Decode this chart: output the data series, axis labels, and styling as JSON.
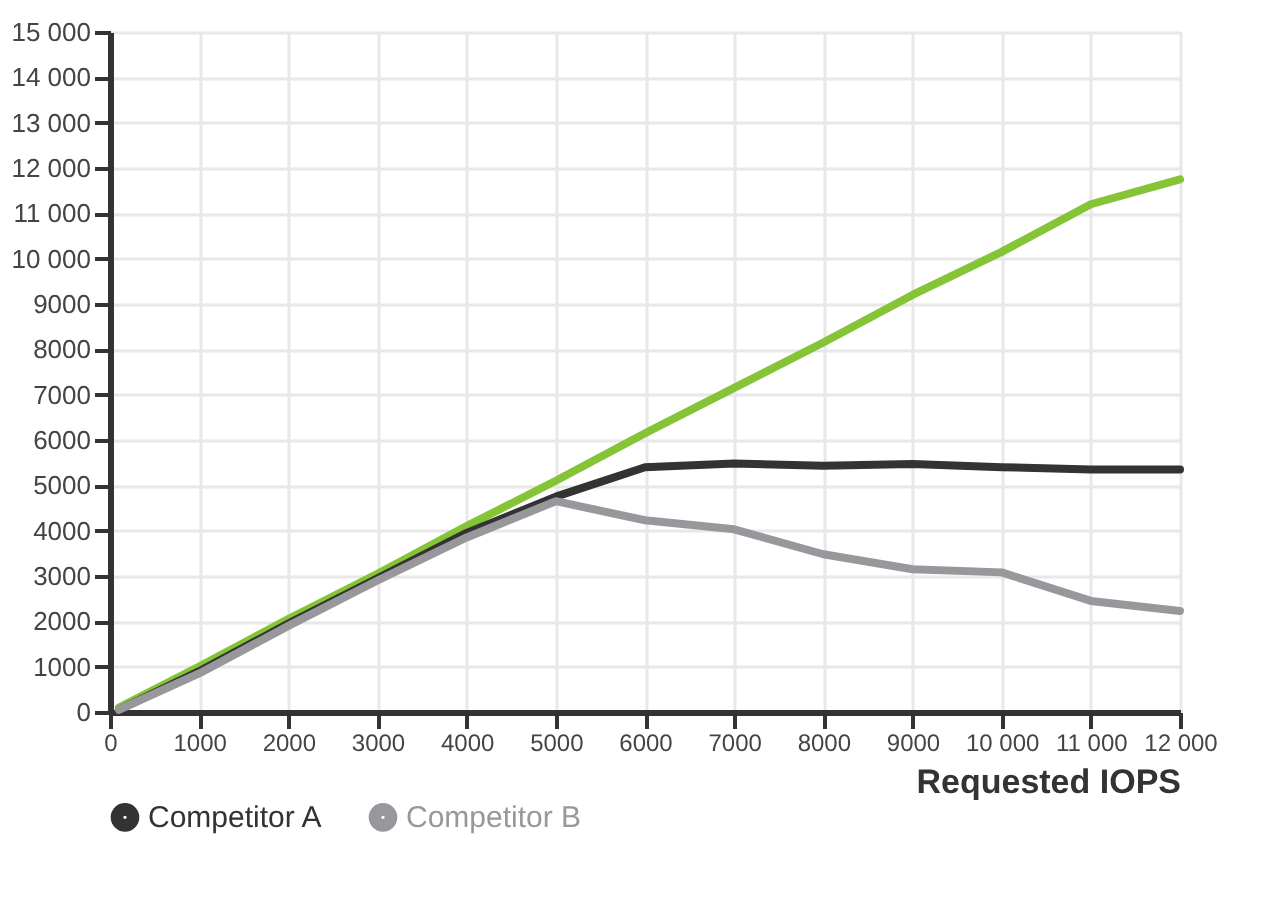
{
  "chart_data": {
    "type": "line",
    "xlabel": "Requested IOPS",
    "x": [
      100,
      1000,
      2000,
      3000,
      4000,
      5000,
      6000,
      7000,
      8000,
      9000,
      10000,
      11000,
      12000
    ],
    "series": [
      {
        "color": "#84c436",
        "values": [
          100,
          1000,
          2050,
          3050,
          4100,
          5100,
          6150,
          7150,
          8150,
          9200,
          10150,
          11200,
          11750
        ]
      },
      {
        "name": "Competitor A",
        "color": "#333333",
        "values": [
          50,
          900,
          1950,
          2950,
          3950,
          4750,
          5400,
          5480,
          5430,
          5470,
          5400,
          5350,
          5350
        ]
      },
      {
        "name": "Competitor B",
        "color": "#98989c",
        "values": [
          50,
          850,
          1900,
          2900,
          3850,
          4650,
          4230,
          4030,
          3480,
          3150,
          3080,
          2450,
          2230
        ]
      }
    ],
    "xlim": [
      0,
      12000
    ],
    "xticks": [
      0,
      1000,
      2000,
      3000,
      4000,
      5000,
      6000,
      7000,
      8000,
      9000,
      {
        "value": 10000,
        "label": "10 000"
      },
      {
        "value": 11000,
        "label": "11 000"
      },
      {
        "value": 12000,
        "label": "12 000"
      }
    ],
    "ylim": [
      0,
      15000
    ],
    "yticks": [
      0,
      1000,
      2000,
      3000,
      4000,
      5000,
      6000,
      7000,
      8000,
      9000,
      {
        "value": 10000,
        "label": "10 000"
      },
      {
        "value": 11000,
        "label": "11 000"
      },
      {
        "value": 12000,
        "label": "12 000"
      },
      {
        "value": 13000,
        "label": "13 000"
      },
      {
        "value": 14000,
        "label": "14 000"
      },
      {
        "value": 15000,
        "label": "15 000"
      }
    ],
    "grid": true,
    "legend": "bottom left",
    "marker": "none",
    "line_style": "solid"
  }
}
